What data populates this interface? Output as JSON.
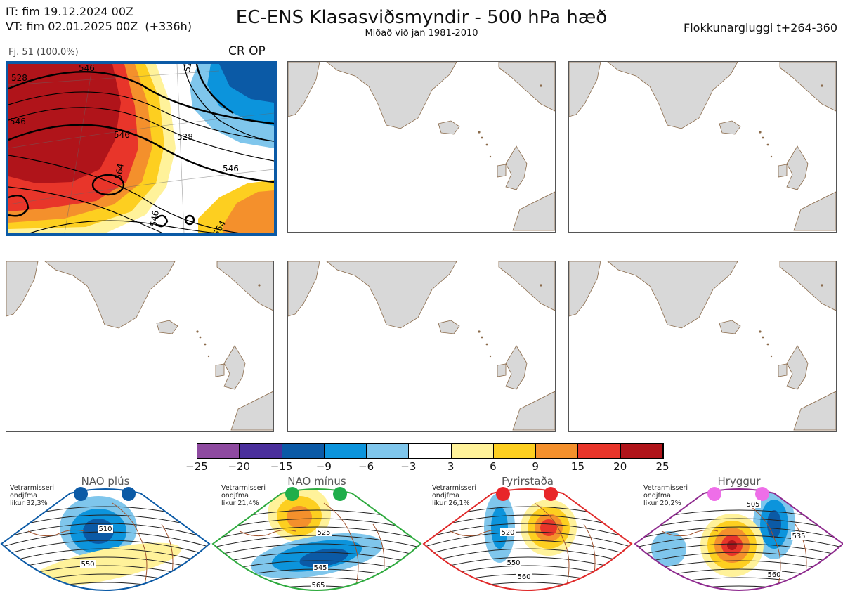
{
  "header": {
    "it_line": "IT: fim 19.12.2024 00Z",
    "vt_line": "VT: fim 02.01.2025 00Z  (+336h)",
    "title": "EC-ENS Klasasviðsmyndir - 500 hPa hæð",
    "subtitle": "Miðað við jan 1981-2010",
    "window": "Flokkunargluggi t+264-360"
  },
  "panel1": {
    "member_count": "Fj. 51 (100.0%)",
    "tag": "CR OP",
    "contour_labels": [
      "528",
      "546",
      "528",
      "546",
      "564",
      "546",
      "564",
      "546",
      "546",
      "520"
    ]
  },
  "colorbar": {
    "ticks": [
      "−25",
      "−20",
      "−15",
      "−9",
      "−6",
      "−3",
      "3",
      "6",
      "9",
      "15",
      "20",
      "25"
    ],
    "colors": [
      "#8e4aa0",
      "#4a2f9c",
      "#0b5aa6",
      "#0c94dc",
      "#7fc6ec",
      "#ffffff",
      "#fff29a",
      "#fdcf20",
      "#f4902c",
      "#e8352a",
      "#b0141a"
    ]
  },
  "regimes": [
    {
      "name": "NAO plús",
      "note": "Vetrarmisseri\nondjfma\nlíkur 32,3%",
      "dot_color": "#0b5aa6",
      "border": "#0b5aa6",
      "contours": [
        "510",
        "550"
      ]
    },
    {
      "name": "NAO mínus",
      "note": "Vetrarmisseri\nondjfma\nlíkur 21,4%",
      "dot_color": "#1fae4a",
      "border": "#2eaa3e",
      "contours": [
        "525",
        "545",
        "565"
      ]
    },
    {
      "name": "Fyrirstaða",
      "note": "Vetrarmisseri\nondjfma\nlíkur 26,1%",
      "dot_color": "#e8262a",
      "border": "#e02a2a",
      "contours": [
        "520",
        "550",
        "560"
      ]
    },
    {
      "name": "Hryggur",
      "note": "Vetrarmisseri\nondjfma\nlíkur 20,2%",
      "dot_color": "#ee6ee8",
      "border": "#8e2a8e",
      "contours": [
        "505",
        "535",
        "560"
      ]
    }
  ],
  "chart_data": {
    "type": "heatmap",
    "title": "EC-ENS Klasasviðsmyndir - 500 hPa hæð",
    "subtitle": "Miðað við jan 1981-2010",
    "colorbar_ticks": [
      -25,
      -20,
      -15,
      -9,
      -6,
      -3,
      3,
      6,
      9,
      15,
      20,
      25
    ],
    "panels": [
      {
        "label": "Fj. 51 (100.0%)",
        "tag": "CR OP",
        "filled": true
      },
      {
        "filled": false
      },
      {
        "filled": false
      },
      {
        "filled": false
      },
      {
        "filled": false
      },
      {
        "filled": false
      }
    ],
    "regimes": [
      {
        "name": "NAO plús",
        "probability": "32,3%"
      },
      {
        "name": "NAO mínus",
        "probability": "21,4%"
      },
      {
        "name": "Fyrirstaða",
        "probability": "26,1%"
      },
      {
        "name": "Hryggur",
        "probability": "20,2%"
      }
    ]
  }
}
